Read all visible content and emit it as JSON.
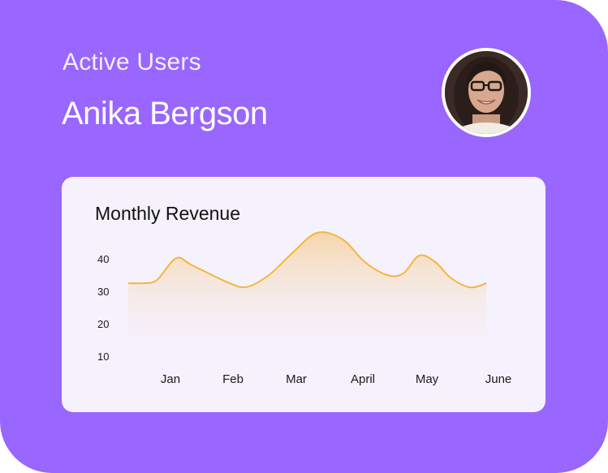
{
  "header": {
    "subtitle": "Active Users",
    "user_name": "Anika Bergson"
  },
  "avatar": {
    "description_icon": "user-avatar-photo"
  },
  "colors": {
    "card": "#9966ff",
    "panel": "#f5f1fd",
    "line": "#f4b63f",
    "area_top": "#f7d9a8"
  },
  "chart_data": {
    "type": "area",
    "title": "Monthly Revenue",
    "xlabel": "",
    "ylabel": "",
    "categories": [
      "Jan",
      "Feb",
      "Mar",
      "April",
      "May",
      "June"
    ],
    "y_ticks": [
      10,
      20,
      30,
      40
    ],
    "ylim": [
      8,
      48
    ],
    "grid": false,
    "points": [
      {
        "x": 0.0,
        "y": 32.5
      },
      {
        "x": 0.25,
        "y": 32.5
      },
      {
        "x": 0.45,
        "y": 33.5
      },
      {
        "x": 0.75,
        "y": 40.2
      },
      {
        "x": 1.0,
        "y": 38.0
      },
      {
        "x": 1.55,
        "y": 32.8
      },
      {
        "x": 1.85,
        "y": 31.3
      },
      {
        "x": 2.2,
        "y": 35.0
      },
      {
        "x": 2.55,
        "y": 41.5
      },
      {
        "x": 2.95,
        "y": 48.0
      },
      {
        "x": 3.35,
        "y": 46.0
      },
      {
        "x": 3.7,
        "y": 39.0
      },
      {
        "x": 4.05,
        "y": 35.0
      },
      {
        "x": 4.3,
        "y": 35.5
      },
      {
        "x": 4.55,
        "y": 41.0
      },
      {
        "x": 4.8,
        "y": 39.0
      },
      {
        "x": 5.05,
        "y": 34.0
      },
      {
        "x": 5.35,
        "y": 31.2
      },
      {
        "x": 5.6,
        "y": 32.5
      }
    ]
  }
}
